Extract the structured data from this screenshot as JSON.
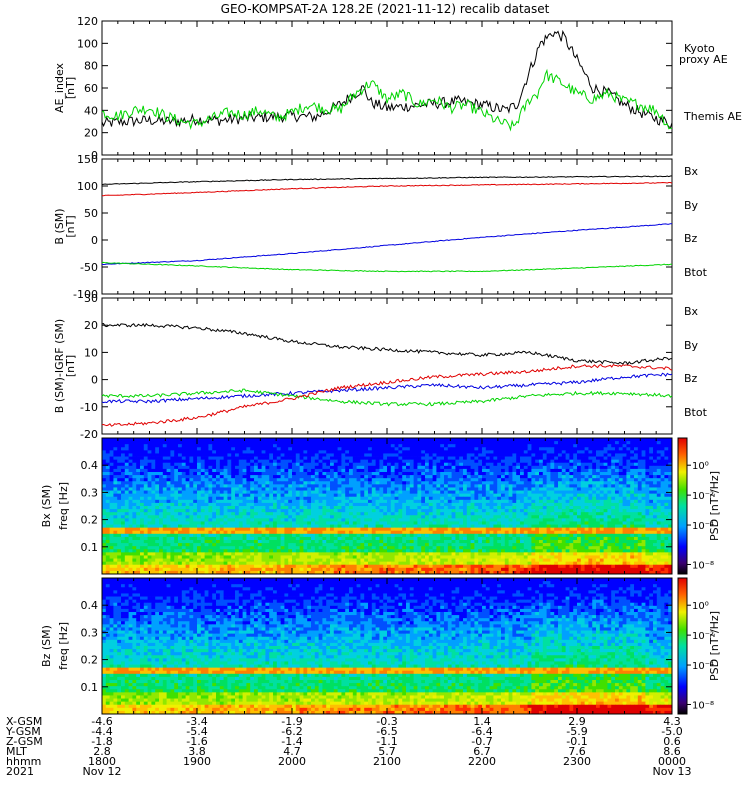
{
  "title": "GEO-KOMPSAT-2A 128.2E (2021-11-12) recalib dataset",
  "colors": {
    "black": "#000000",
    "green": "#00d400",
    "red": "#e00000",
    "blue": "#0000e0"
  },
  "chart_data": [
    {
      "id": "ae",
      "type": "line",
      "ylabel": "AE_index [nT]",
      "ylim": [
        0,
        120
      ],
      "yticks": [
        0,
        20,
        40,
        60,
        80,
        100,
        120
      ],
      "xlim": [
        0,
        360
      ],
      "x_unit": "minutes since 1800 UT",
      "series": [
        {
          "name": "Themis AE",
          "color": "#000000",
          "x": [
            0,
            15,
            30,
            45,
            60,
            75,
            90,
            105,
            120,
            135,
            150,
            160,
            165,
            170,
            180,
            195,
            210,
            225,
            240,
            255,
            262,
            270,
            277,
            285,
            292,
            300,
            310,
            320,
            330,
            345,
            360
          ],
          "y": [
            28,
            30,
            31,
            30,
            32,
            31,
            33,
            34,
            35,
            34,
            45,
            55,
            60,
            47,
            42,
            44,
            46,
            48,
            45,
            40,
            45,
            75,
            100,
            110,
            105,
            85,
            60,
            55,
            45,
            35,
            28
          ]
        },
        {
          "name": "Kyoto proxy AE",
          "color": "#00d400",
          "x": [
            0,
            10,
            20,
            30,
            40,
            50,
            60,
            70,
            80,
            90,
            100,
            110,
            120,
            130,
            140,
            150,
            160,
            170,
            180,
            190,
            200,
            210,
            220,
            230,
            240,
            250,
            260,
            270,
            275,
            280,
            290,
            300,
            310,
            320,
            330,
            340,
            350,
            355,
            360
          ],
          "y": [
            38,
            35,
            40,
            42,
            35,
            30,
            28,
            33,
            38,
            36,
            40,
            33,
            38,
            45,
            42,
            40,
            55,
            65,
            50,
            55,
            45,
            50,
            42,
            45,
            38,
            30,
            25,
            50,
            55,
            72,
            65,
            55,
            50,
            55,
            48,
            45,
            40,
            32,
            22
          ]
        }
      ]
    },
    {
      "id": "b",
      "type": "line",
      "ylabel": "B (SM) [nT]",
      "ylim": [
        -100,
        150
      ],
      "yticks": [
        -100,
        -50,
        0,
        50,
        100,
        150
      ],
      "xlim": [
        0,
        360
      ],
      "series": [
        {
          "name": "Bx",
          "color": "#0000e0",
          "x": [
            0,
            60,
            120,
            180,
            240,
            300,
            360
          ],
          "y": [
            -45,
            -38,
            -25,
            -10,
            5,
            18,
            30
          ]
        },
        {
          "name": "By",
          "color": "#00d400",
          "x": [
            0,
            60,
            120,
            180,
            240,
            300,
            360
          ],
          "y": [
            -42,
            -48,
            -55,
            -58,
            -58,
            -52,
            -45
          ]
        },
        {
          "name": "Bz",
          "color": "#e00000",
          "x": [
            0,
            60,
            120,
            180,
            240,
            300,
            360
          ],
          "y": [
            82,
            88,
            95,
            100,
            102,
            104,
            106
          ]
        },
        {
          "name": "Btot",
          "color": "#000000",
          "x": [
            0,
            60,
            120,
            180,
            240,
            300,
            360
          ],
          "y": [
            103,
            108,
            112,
            114,
            116,
            117,
            118
          ]
        }
      ]
    },
    {
      "id": "dbb",
      "type": "line",
      "ylabel": "B (SM)-IGRF (SM) [nT]",
      "ylim": [
        -20,
        30
      ],
      "yticks": [
        -20,
        -10,
        0,
        10,
        20,
        30
      ],
      "xlim": [
        0,
        360
      ],
      "series": [
        {
          "name": "Bx",
          "color": "#0000e0",
          "x": [
            0,
            30,
            60,
            90,
            120,
            150,
            180,
            210,
            240,
            270,
            300,
            330,
            360
          ],
          "y": [
            -8,
            -8,
            -7,
            -6,
            -5,
            -4,
            -3,
            -2,
            -3,
            -2,
            -1,
            1,
            2
          ]
        },
        {
          "name": "By",
          "color": "#00d400",
          "x": [
            0,
            30,
            60,
            90,
            120,
            150,
            180,
            210,
            240,
            270,
            300,
            330,
            360
          ],
          "y": [
            -6,
            -6,
            -5,
            -4,
            -6,
            -8,
            -9,
            -9,
            -8,
            -6,
            -5,
            -5,
            -6
          ]
        },
        {
          "name": "Bz",
          "color": "#e00000",
          "x": [
            0,
            30,
            60,
            90,
            120,
            150,
            180,
            210,
            240,
            270,
            300,
            330,
            360
          ],
          "y": [
            -17,
            -16,
            -14,
            -10,
            -7,
            -3,
            -1,
            1,
            2,
            3,
            5,
            5,
            4
          ]
        },
        {
          "name": "Btot",
          "color": "#000000",
          "x": [
            0,
            30,
            60,
            90,
            120,
            150,
            180,
            210,
            240,
            270,
            300,
            330,
            360
          ],
          "y": [
            20,
            20,
            19,
            17,
            14,
            12,
            11,
            10,
            9,
            10,
            7,
            6,
            8
          ]
        }
      ]
    },
    {
      "id": "specx",
      "type": "heatmap",
      "ylabel": "Bx (SM) freq [Hz]",
      "ylim": [
        0,
        0.5
      ],
      "yticks": [
        0.1,
        0.2,
        0.3,
        0.4
      ],
      "colorbar": {
        "label": "PSD [nT²/Hz]",
        "ticks": [
          "10⁰",
          "10⁻²",
          "10⁻⁴",
          "10⁻⁸"
        ]
      }
    },
    {
      "id": "specz",
      "type": "heatmap",
      "ylabel": "Bz (SM) freq [Hz]",
      "ylim": [
        0,
        0.5
      ],
      "yticks": [
        0.1,
        0.2,
        0.3,
        0.4
      ],
      "colorbar": {
        "label": "PSD [nT²/Hz]",
        "ticks": [
          "10⁰",
          "10⁻²",
          "10⁻⁴",
          "10⁻⁸"
        ]
      }
    }
  ],
  "x_axis": {
    "row_labels": [
      "X-GSM",
      "Y-GSM",
      "Z-GSM",
      "MLT",
      "hhmm",
      "2021"
    ],
    "columns": [
      {
        "values": [
          "-4.6",
          "-4.4",
          "-1.8",
          "2.8",
          "1800",
          "Nov 12"
        ]
      },
      {
        "values": [
          "-3.4",
          "-5.4",
          "-1.6",
          "3.8",
          "1900",
          ""
        ]
      },
      {
        "values": [
          "-1.9",
          "-6.2",
          "-1.4",
          "4.7",
          "2000",
          ""
        ]
      },
      {
        "values": [
          "-0.3",
          "-6.5",
          "-1.1",
          "5.7",
          "2100",
          ""
        ]
      },
      {
        "values": [
          "1.4",
          "-6.4",
          "-0.7",
          "6.7",
          "2200",
          ""
        ]
      },
      {
        "values": [
          "2.9",
          "-5.9",
          "-0.1",
          "7.6",
          "2300",
          ""
        ]
      },
      {
        "values": [
          "4.3",
          "-5.0",
          "0.6",
          "8.6",
          "0000",
          "Nov 13"
        ]
      }
    ]
  },
  "legends": {
    "ae": [
      "Kyoto proxy AE",
      "Themis AE"
    ],
    "b": [
      "Bx",
      "By",
      "Bz",
      "Btot"
    ],
    "dbb": [
      "Bx",
      "By",
      "Bz",
      "Btot"
    ]
  }
}
